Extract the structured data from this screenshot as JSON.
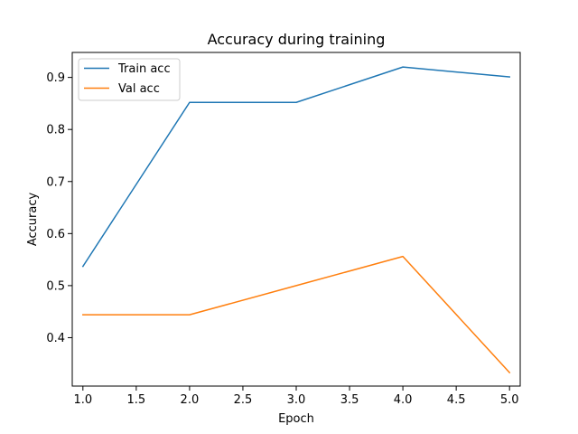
{
  "chart_data": {
    "type": "line",
    "title": "Accuracy during training",
    "xlabel": "Epoch",
    "ylabel": "Accuracy",
    "xlim": [
      0.9,
      5.1
    ],
    "ylim": [
      0.307,
      0.948
    ],
    "x": [
      1.0,
      2.0,
      3.0,
      4.0,
      5.0
    ],
    "xticks": [
      "1.0",
      "1.5",
      "2.0",
      "2.5",
      "3.0",
      "3.5",
      "4.0",
      "4.5",
      "5.0"
    ],
    "yticks": [
      "0.4",
      "0.5",
      "0.6",
      "0.7",
      "0.8",
      "0.9"
    ],
    "grid": false,
    "legend_position": "top-left",
    "series": [
      {
        "name": "Train acc",
        "color": "#1f77b4",
        "values": [
          0.537,
          0.852,
          0.852,
          0.92,
          0.901
        ]
      },
      {
        "name": "Val acc",
        "color": "#ff7f0e",
        "values": [
          0.444,
          0.444,
          0.5,
          0.556,
          0.333
        ]
      }
    ]
  }
}
